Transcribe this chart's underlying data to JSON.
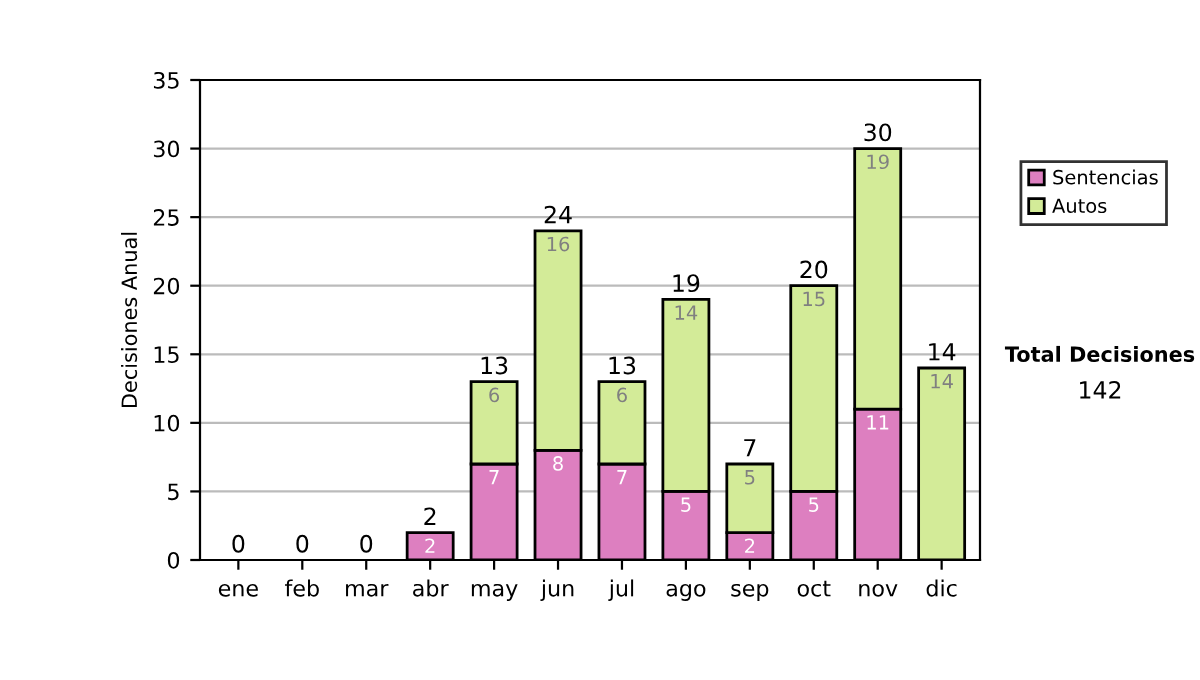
{
  "chart_data": {
    "type": "bar",
    "stacked": true,
    "ylabel": "Decisiones Anual",
    "categories": [
      "ene",
      "feb",
      "mar",
      "abr",
      "may",
      "jun",
      "jul",
      "ago",
      "sep",
      "oct",
      "nov",
      "dic"
    ],
    "series": [
      {
        "name": "Sentencias",
        "color": "#dd7fc0",
        "values": [
          0,
          0,
          0,
          2,
          7,
          8,
          7,
          5,
          2,
          5,
          11,
          0
        ],
        "value_labels": [
          null,
          null,
          null,
          "2",
          "7",
          "8",
          "7",
          "5",
          "2",
          "5",
          "11",
          null
        ]
      },
      {
        "name": "Autos",
        "color": "#d3eb98",
        "values": [
          0,
          0,
          0,
          0,
          6,
          16,
          6,
          14,
          5,
          15,
          19,
          14
        ],
        "value_labels": [
          null,
          null,
          null,
          null,
          "6",
          "16",
          "6",
          "14",
          "5",
          "15",
          "19",
          "14"
        ]
      }
    ],
    "totals": [
      "0",
      "0",
      "0",
      "2",
      "13",
      "24",
      "13",
      "19",
      "7",
      "20",
      "30",
      "14"
    ],
    "ylim": [
      0,
      35
    ],
    "yticks": [
      0,
      5,
      10,
      15,
      20,
      25,
      30,
      35
    ],
    "grid": "y",
    "legend": "right",
    "annotations": [
      "Total Decisiones",
      "142"
    ]
  }
}
